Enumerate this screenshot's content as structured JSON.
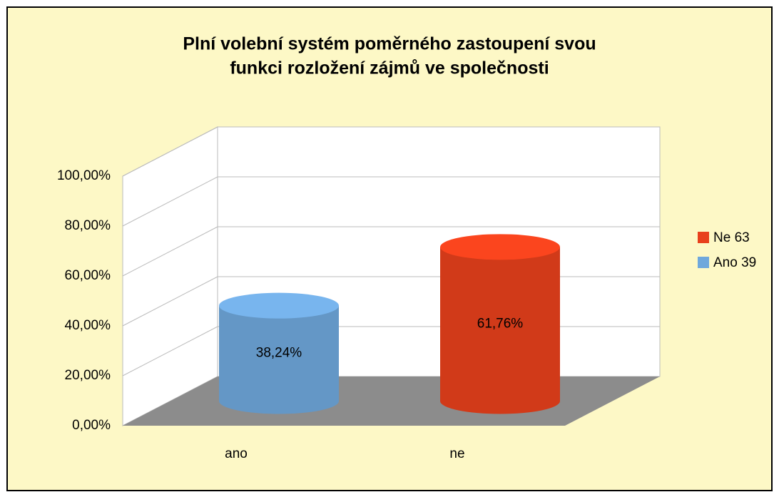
{
  "chart_data": {
    "type": "bar",
    "title": [
      "Plní volební systém poměrného zastoupení svou",
      "funkci rozložení zájmů ve společnosti"
    ],
    "categories": [
      "ano",
      "ne"
    ],
    "series": [
      {
        "name": "Ano 39",
        "color": "#6fa8dc",
        "values": [
          38.24,
          null
        ],
        "value_labels": [
          "38,24%",
          null
        ]
      },
      {
        "name": "Ne 63",
        "color": "#e8401c",
        "values": [
          null,
          61.76
        ],
        "value_labels": [
          null,
          "61,76%"
        ]
      }
    ],
    "ylim": [
      0,
      100
    ],
    "yticks": [
      {
        "value": 0,
        "label": "0,00%"
      },
      {
        "value": 20,
        "label": "20,00%"
      },
      {
        "value": 40,
        "label": "40,00%"
      },
      {
        "value": 60,
        "label": "60,00%"
      },
      {
        "value": 80,
        "label": "80,00%"
      },
      {
        "value": 100,
        "label": "100,00%"
      }
    ],
    "grid": true,
    "legend": "right"
  }
}
